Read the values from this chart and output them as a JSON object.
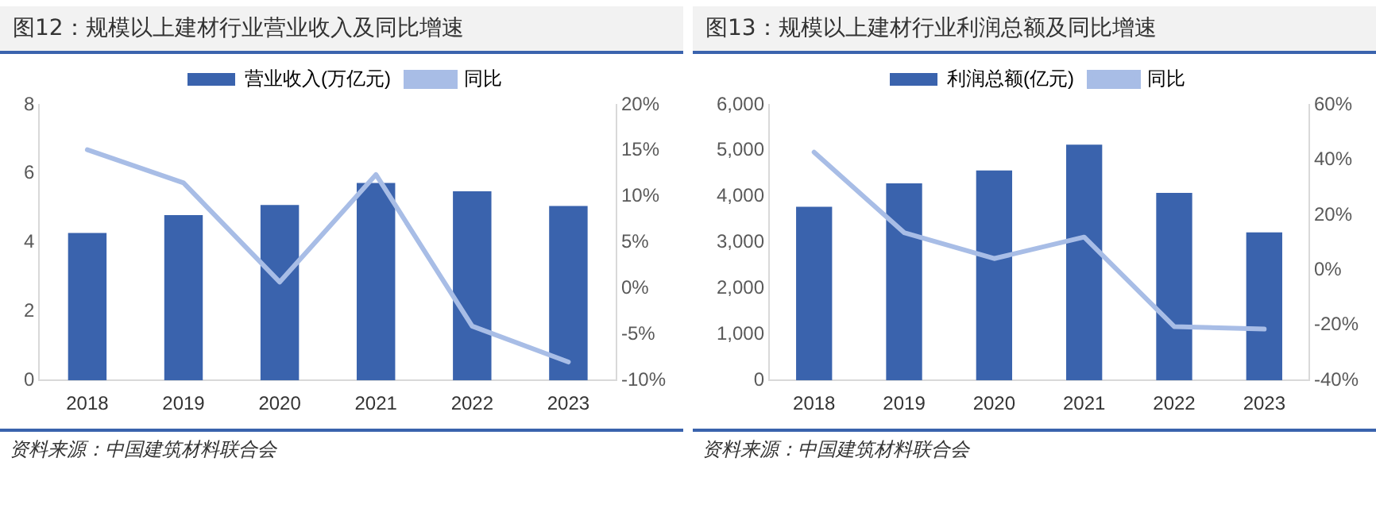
{
  "chart_data": [
    {
      "type": "bar",
      "title": "图12：规模以上建材行业营业收入及同比增速",
      "categories": [
        "2018",
        "2019",
        "2020",
        "2021",
        "2022",
        "2023"
      ],
      "series": [
        {
          "name": "营业收入(万亿元)",
          "color": "#3a63ad",
          "values": [
            4.28,
            4.8,
            5.09,
            5.73,
            5.49,
            5.06
          ]
        },
        {
          "name": "同比",
          "type": "line",
          "axis": "y2",
          "color": "#a8bde6",
          "values": [
            15.1,
            11.5,
            0.7,
            12.4,
            -4.1,
            -8.0
          ]
        }
      ],
      "ylim": [
        0,
        8
      ],
      "yticks": [
        0,
        2,
        4,
        6,
        8
      ],
      "y2lim": [
        -10,
        20
      ],
      "y2ticks": [
        {
          "value": -10,
          "label": "-10%"
        },
        {
          "value": -5,
          "label": "-5%"
        },
        {
          "value": 0,
          "label": "0%"
        },
        {
          "value": 5,
          "label": "5%"
        },
        {
          "value": 10,
          "label": "10%"
        },
        {
          "value": 15,
          "label": "15%"
        },
        {
          "value": 20,
          "label": "20%"
        }
      ],
      "grid": false,
      "legend": "top",
      "marker": "none",
      "annotations": [
        "资料来源：中国建筑材料联合会"
      ]
    },
    {
      "type": "bar",
      "title": "图13：规模以上建材行业利润总额及同比增速",
      "categories": [
        "2018",
        "2019",
        "2020",
        "2021",
        "2022",
        "2023"
      ],
      "series": [
        {
          "name": "利润总额(亿元)",
          "color": "#3a63ad",
          "values": [
            3780,
            4290,
            4570,
            5130,
            4080,
            3220
          ]
        },
        {
          "name": "同比",
          "type": "line",
          "axis": "y2",
          "color": "#a8bde6",
          "values": [
            42.8,
            13.6,
            4.2,
            12.0,
            -20.5,
            -21.4
          ]
        }
      ],
      "ylim": [
        0,
        6000
      ],
      "yticks": [
        0,
        {
          "value": 1000,
          "label": "1,000"
        },
        {
          "value": 2000,
          "label": "2,000"
        },
        {
          "value": 3000,
          "label": "3,000"
        },
        {
          "value": 4000,
          "label": "4,000"
        },
        {
          "value": 5000,
          "label": "5,000"
        },
        {
          "value": 6000,
          "label": "6,000"
        }
      ],
      "y2lim": [
        -40,
        60
      ],
      "y2ticks": [
        {
          "value": -40,
          "label": "-40%"
        },
        {
          "value": -20,
          "label": "-20%"
        },
        {
          "value": 0,
          "label": "0%"
        },
        {
          "value": 20,
          "label": "20%"
        },
        {
          "value": 40,
          "label": "40%"
        },
        {
          "value": 60,
          "label": "60%"
        }
      ],
      "grid": false,
      "legend": "top",
      "marker": "none",
      "annotations": [
        "资料来源：中国建筑材料联合会"
      ]
    }
  ]
}
